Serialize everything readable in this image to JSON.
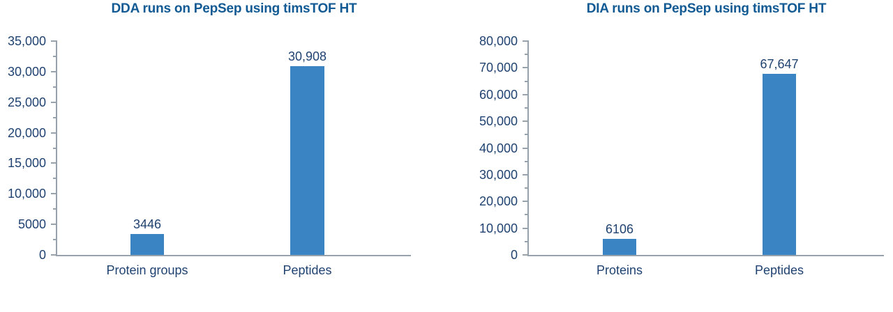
{
  "figure": {
    "background": "#ffffff"
  },
  "colors": {
    "bar": "#3a84c4",
    "title": "#115a94",
    "label": "#1f4271",
    "axis": "#98a2ac"
  },
  "chart_data": [
    {
      "id": "dda",
      "type": "bar",
      "title": "DDA runs on PepSep using timsTOF HT",
      "categories": [
        "Protein groups",
        "Peptides"
      ],
      "values": [
        3446,
        30908
      ],
      "value_labels": [
        "3446",
        "30,908"
      ],
      "xlabel": "",
      "ylabel": "",
      "ylim": [
        0,
        35000
      ],
      "ytick_interval": 5000,
      "ytick_labels": [
        "0",
        "5000",
        "10,000",
        "15,000",
        "20,000",
        "25,000",
        "30,000",
        "35,000"
      ],
      "minor_tick_interval": 2500,
      "grid": false,
      "legend": false
    },
    {
      "id": "dia",
      "type": "bar",
      "title": "DIA runs on PepSep using timsTOF HT",
      "categories": [
        "Proteins",
        "Peptides"
      ],
      "values": [
        6106,
        67647
      ],
      "value_labels": [
        "6106",
        "67,647"
      ],
      "xlabel": "",
      "ylabel": "",
      "ylim": [
        0,
        80000
      ],
      "ytick_interval": 10000,
      "ytick_labels": [
        "0",
        "10,000",
        "20,000",
        "30,000",
        "40,000",
        "50,000",
        "60,000",
        "70,000",
        "80,000"
      ],
      "minor_tick_interval": 5000,
      "grid": false,
      "legend": false
    }
  ]
}
